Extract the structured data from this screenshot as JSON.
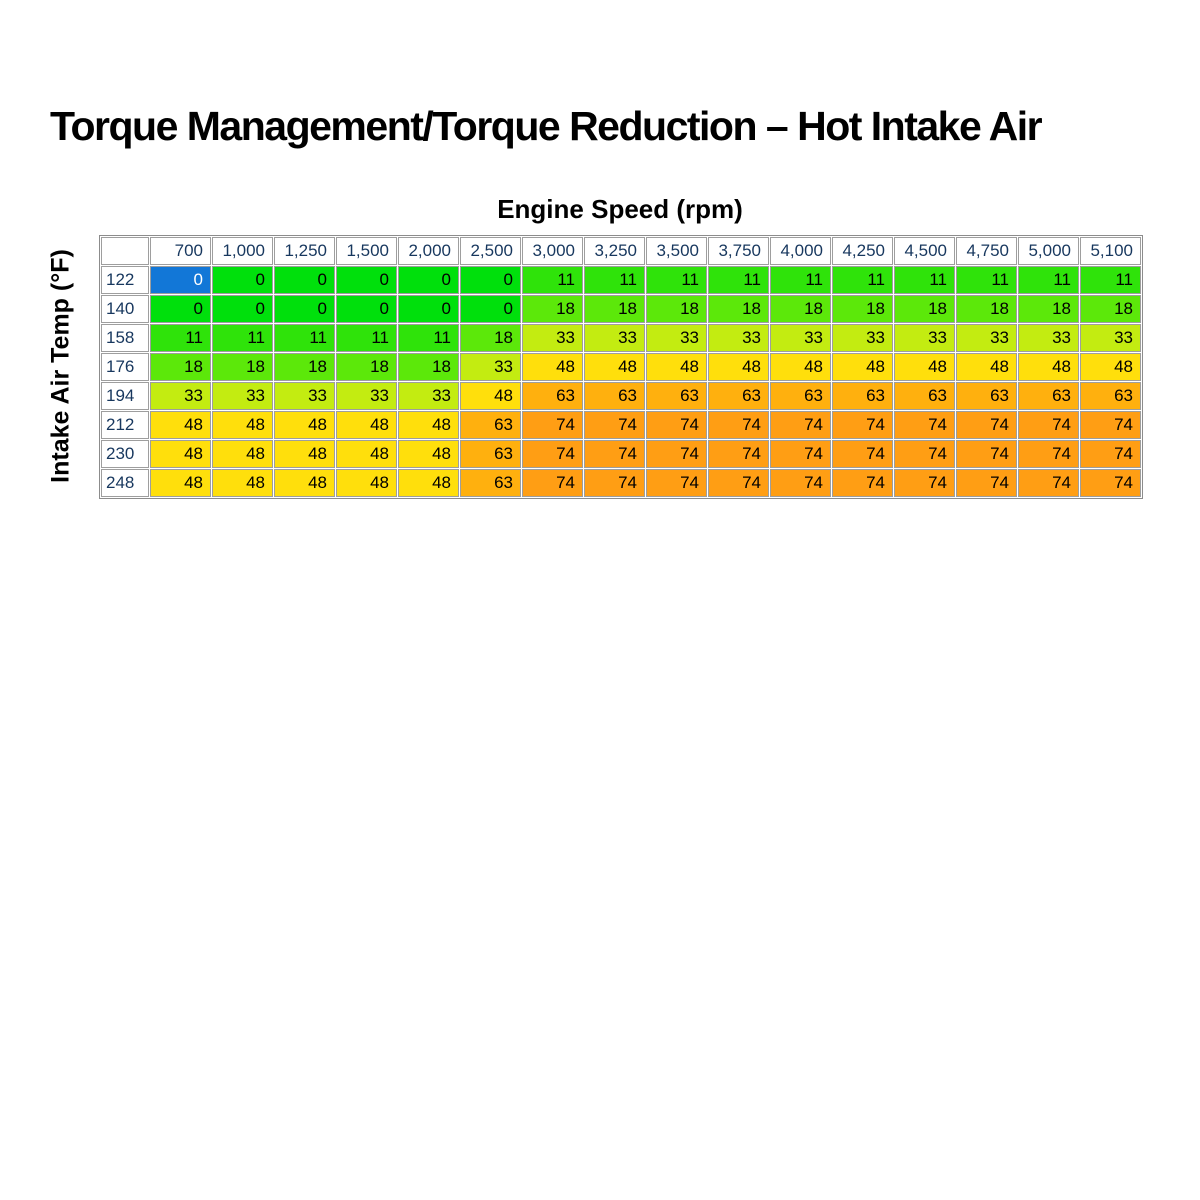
{
  "title": "Torque Management/Torque Reduction – Hot Intake Air",
  "axes": {
    "x_label": "Engine Speed (rpm)",
    "y_label": "Intake Air Temp (°F)"
  },
  "chart_data": {
    "type": "heatmap",
    "x_axis_title": "Engine Speed (rpm)",
    "y_axis_title": "Intake Air Temp (°F)",
    "x_categories": [
      "700",
      "1,000",
      "1,250",
      "1,500",
      "2,000",
      "2,500",
      "3,000",
      "3,250",
      "3,500",
      "3,750",
      "4,000",
      "4,250",
      "4,500",
      "4,750",
      "5,000",
      "5,100"
    ],
    "y_categories": [
      "122",
      "140",
      "158",
      "176",
      "194",
      "212",
      "230",
      "248"
    ],
    "values": [
      [
        0,
        0,
        0,
        0,
        0,
        0,
        11,
        11,
        11,
        11,
        11,
        11,
        11,
        11,
        11,
        11
      ],
      [
        0,
        0,
        0,
        0,
        0,
        0,
        18,
        18,
        18,
        18,
        18,
        18,
        18,
        18,
        18,
        18
      ],
      [
        11,
        11,
        11,
        11,
        11,
        18,
        33,
        33,
        33,
        33,
        33,
        33,
        33,
        33,
        33,
        33
      ],
      [
        18,
        18,
        18,
        18,
        18,
        33,
        48,
        48,
        48,
        48,
        48,
        48,
        48,
        48,
        48,
        48
      ],
      [
        33,
        33,
        33,
        33,
        33,
        48,
        63,
        63,
        63,
        63,
        63,
        63,
        63,
        63,
        63,
        63
      ],
      [
        48,
        48,
        48,
        48,
        48,
        63,
        74,
        74,
        74,
        74,
        74,
        74,
        74,
        74,
        74,
        74
      ],
      [
        48,
        48,
        48,
        48,
        48,
        63,
        74,
        74,
        74,
        74,
        74,
        74,
        74,
        74,
        74,
        74
      ],
      [
        48,
        48,
        48,
        48,
        48,
        63,
        74,
        74,
        74,
        74,
        74,
        74,
        74,
        74,
        74,
        74
      ]
    ],
    "selected_cell": {
      "row_index": 0,
      "col_index": 0,
      "value": 0
    },
    "value_colors": {
      "0": "#00e00c",
      "11": "#2fe30a",
      "18": "#5ce80a",
      "33": "#c3ec11",
      "48": "#ffdf0c",
      "63": "#ffb00e",
      "74": "#ff9e14"
    },
    "selection_color": "#1277d7",
    "selection_text_color": "#ffffff",
    "header_text_color": "#17375e",
    "grid_color": "#9e9e9e",
    "legend_position": "none",
    "grid": true
  }
}
